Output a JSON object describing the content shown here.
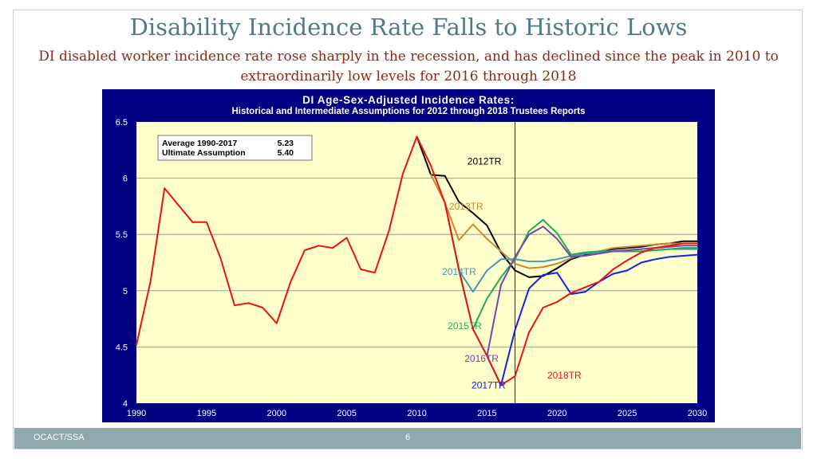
{
  "slide": {
    "title": "Disability Incidence Rate Falls to Historic Lows",
    "subtitle": "DI disabled worker incidence rate rose sharply in the recession, and has declined since the peak in 2010 to extraordinarily low levels for 2016 through 2018",
    "footer_left": "OCACT/SSA",
    "page_number": "6"
  },
  "colors": {
    "panel": "#000080",
    "plot_bg": "#FFFFCC",
    "footer": "#8FA8AB",
    "title": "#4F7A86",
    "subtitle": "#8B2A16"
  },
  "chart_data": {
    "type": "line",
    "title": "DI Age-Sex-Adjusted Incidence Rates:",
    "subtitle": "Historical and Intermediate Assumptions for 2012 through 2018 Trustees Reports",
    "xlim": [
      1990,
      2030
    ],
    "ylim": [
      4,
      6.5
    ],
    "xticks": [
      1990,
      1995,
      2000,
      2005,
      2010,
      2015,
      2020,
      2025,
      2030
    ],
    "yticks": [
      4,
      4.5,
      5,
      5.5,
      6,
      6.5
    ],
    "ytick_labels": [
      "4",
      "4.5",
      "5",
      "5.5",
      "6",
      "6.5"
    ],
    "vline_x": 2017,
    "legend_box": {
      "line1_label": "Average 1990-2017",
      "line1_value": "5.23",
      "line2_label": "Ultimate Assumption",
      "line2_value": "5.40"
    },
    "series": [
      {
        "name": "2012TR",
        "color": "#000000",
        "x": [
          2010,
          2011,
          2012,
          2013,
          2014,
          2015,
          2016,
          2017,
          2018,
          2019,
          2020,
          2021,
          2022,
          2023,
          2024,
          2025,
          2026,
          2027,
          2028,
          2029,
          2030
        ],
        "y": [
          6.37,
          6.03,
          6.02,
          5.79,
          5.69,
          5.58,
          5.34,
          5.18,
          5.12,
          5.13,
          5.2,
          5.28,
          5.32,
          5.35,
          5.37,
          5.38,
          5.39,
          5.41,
          5.42,
          5.44,
          5.44
        ]
      },
      {
        "name": "2013TR",
        "color": "#CC8833",
        "x": [
          2011,
          2012,
          2013,
          2014,
          2015,
          2016,
          2017,
          2018,
          2019,
          2020,
          2021,
          2022,
          2023,
          2024,
          2025,
          2026,
          2027,
          2028,
          2029,
          2030
        ],
        "y": [
          6.03,
          5.78,
          5.45,
          5.59,
          5.46,
          5.35,
          5.24,
          5.2,
          5.21,
          5.24,
          5.29,
          5.33,
          5.35,
          5.38,
          5.39,
          5.4,
          5.41,
          5.42,
          5.42,
          5.42
        ]
      },
      {
        "name": "2014TR",
        "color": "#4499BB",
        "x": [
          2012,
          2013,
          2014,
          2015,
          2016,
          2017,
          2018,
          2019,
          2020,
          2021,
          2022,
          2023,
          2024,
          2025,
          2026,
          2027,
          2028,
          2029,
          2030
        ],
        "y": [
          5.78,
          5.18,
          4.99,
          5.18,
          5.28,
          5.28,
          5.26,
          5.26,
          5.28,
          5.31,
          5.33,
          5.34,
          5.35,
          5.35,
          5.35,
          5.36,
          5.37,
          5.37,
          5.37
        ]
      },
      {
        "name": "2015TR",
        "color": "#22AA55",
        "x": [
          2013,
          2014,
          2015,
          2016,
          2017,
          2018,
          2019,
          2020,
          2021,
          2022,
          2023,
          2024,
          2025,
          2026,
          2027,
          2028,
          2029,
          2030
        ],
        "y": [
          5.18,
          4.66,
          4.93,
          5.12,
          5.28,
          5.53,
          5.63,
          5.51,
          5.32,
          5.34,
          5.35,
          5.35,
          5.35,
          5.35,
          5.36,
          5.37,
          5.38,
          5.38
        ]
      },
      {
        "name": "2016TR",
        "color": "#7744AA",
        "x": [
          2014,
          2015,
          2016,
          2017,
          2018,
          2019,
          2020,
          2021,
          2022,
          2023,
          2024,
          2025,
          2026,
          2027,
          2028,
          2029,
          2030
        ],
        "y": [
          4.66,
          4.42,
          5.05,
          5.3,
          5.5,
          5.57,
          5.46,
          5.3,
          5.31,
          5.33,
          5.35,
          5.36,
          5.37,
          5.38,
          5.39,
          5.4,
          5.4
        ]
      },
      {
        "name": "2017TR",
        "color": "#1122EE",
        "x": [
          2015,
          2016,
          2017,
          2018,
          2019,
          2020,
          2021,
          2022,
          2023,
          2024,
          2025,
          2026,
          2027,
          2028,
          2029,
          2030
        ],
        "y": [
          4.42,
          4.16,
          4.65,
          5.02,
          5.14,
          5.16,
          4.97,
          4.99,
          5.08,
          5.15,
          5.18,
          5.25,
          5.28,
          5.3,
          5.31,
          5.32
        ]
      },
      {
        "name": "2018TR",
        "color": "#EE1111",
        "x": [
          2016,
          2017,
          2018,
          2019,
          2020,
          2021,
          2022,
          2023,
          2024,
          2025,
          2026,
          2027,
          2028,
          2029,
          2030
        ],
        "y": [
          4.16,
          4.24,
          4.63,
          4.85,
          4.9,
          4.98,
          5.03,
          5.08,
          5.19,
          5.27,
          5.34,
          5.38,
          5.4,
          5.42,
          5.42
        ]
      },
      {
        "name": "Historical",
        "color": "#EE1111",
        "x": [
          1990,
          1991,
          1992,
          1993,
          1994,
          1995,
          1996,
          1997,
          1998,
          1999,
          2000,
          2001,
          2002,
          2003,
          2004,
          2005,
          2006,
          2007,
          2008,
          2009,
          2010,
          2011,
          2012,
          2013,
          2014,
          2015,
          2016
        ],
        "y": [
          4.52,
          5.08,
          5.91,
          5.76,
          5.61,
          5.61,
          5.29,
          4.87,
          4.89,
          4.85,
          4.71,
          5.08,
          5.36,
          5.4,
          5.38,
          5.47,
          5.19,
          5.16,
          5.53,
          6.04,
          6.37,
          6.11,
          5.78,
          5.19,
          4.66,
          4.42,
          4.16
        ]
      }
    ],
    "series_labels": [
      {
        "name": "2012TR",
        "text": "2012TR",
        "x": 2013.6,
        "y": 6.12,
        "color": "#000000"
      },
      {
        "name": "2013TR",
        "text": "2013TR",
        "x": 2012.3,
        "y": 5.72,
        "color": "#CC8833"
      },
      {
        "name": "2014TR",
        "text": "2014TR",
        "x": 2011.8,
        "y": 5.14,
        "color": "#4499BB"
      },
      {
        "name": "2015TR",
        "text": "2015TR",
        "x": 2012.2,
        "y": 4.66,
        "color": "#22AA55"
      },
      {
        "name": "2016TR",
        "text": "2016TR",
        "x": 2013.4,
        "y": 4.37,
        "color": "#7744AA"
      },
      {
        "name": "2017TR",
        "text": "2017TR",
        "x": 2013.9,
        "y": 4.13,
        "color": "#1122EE"
      },
      {
        "name": "2018TR",
        "text": "2018TR",
        "x": 2019.3,
        "y": 4.22,
        "color": "#EE1111"
      }
    ]
  }
}
